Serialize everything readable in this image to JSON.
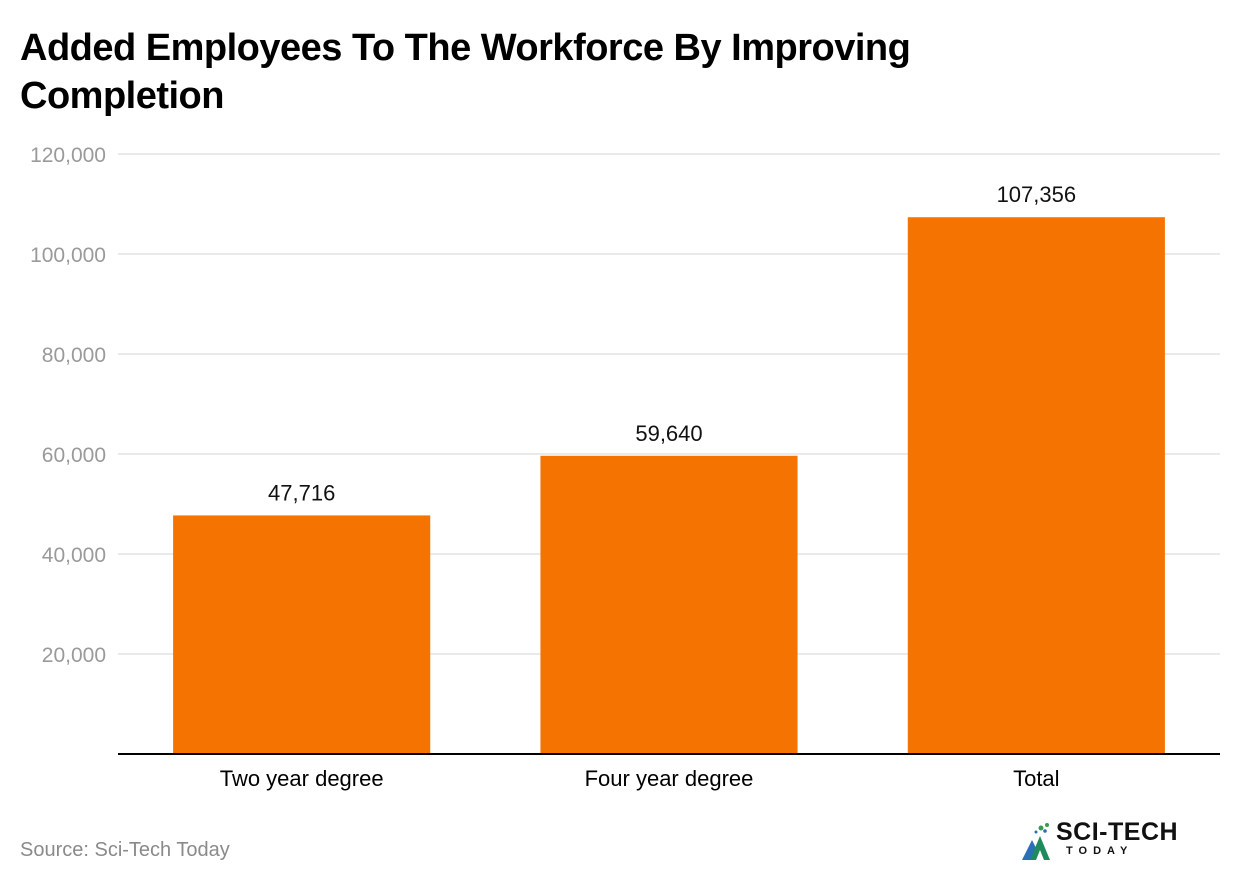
{
  "title": "Added Employees To The Workforce By Improving Completion",
  "source": "Source: Sci-Tech Today",
  "logo": {
    "name": "SCI-TECH",
    "sub": "TODAY"
  },
  "colors": {
    "bar": "#f57300",
    "grid": "#e3e3e3",
    "axis": "#000000",
    "tick_label": "#9a9a9a",
    "category_label": "#000000"
  },
  "chart_data": {
    "type": "bar",
    "categories": [
      "Two year degree",
      "Four year degree",
      "Total"
    ],
    "values": [
      47716,
      59640,
      107356
    ],
    "value_labels": [
      "47,716",
      "59,640",
      "107,356"
    ],
    "title": "Added Employees To The Workforce By Improving Completion",
    "xlabel": "",
    "ylabel": "",
    "ylim": [
      0,
      120000
    ],
    "yticks": [
      20000,
      40000,
      60000,
      80000,
      100000,
      120000
    ],
    "ytick_labels": [
      "20,000",
      "40,000",
      "60,000",
      "80,000",
      "100,000",
      "120,000"
    ],
    "grid": true,
    "legend": "none"
  }
}
